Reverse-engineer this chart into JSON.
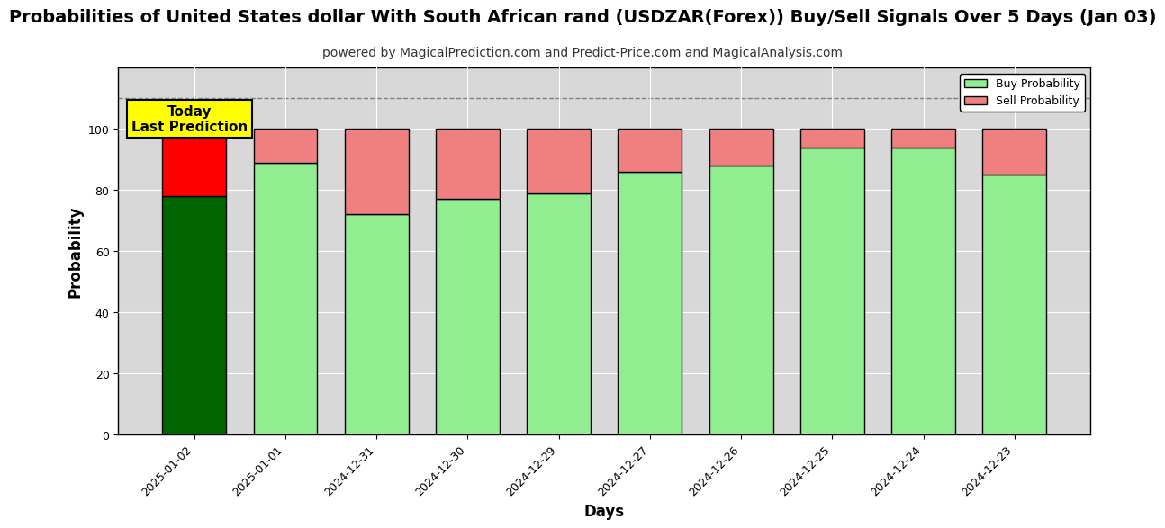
{
  "title": "Probabilities of United States dollar With South African rand (USDZAR(Forex)) Buy/Sell Signals Over 5 Days (Jan 03)",
  "subtitle": "powered by MagicalPrediction.com and Predict-Price.com and MagicalAnalysis.com",
  "xlabel": "Days",
  "ylabel": "Probability",
  "categories": [
    "2025-01-02",
    "2025-01-01",
    "2024-12-31",
    "2024-12-30",
    "2024-12-29",
    "2024-12-27",
    "2024-12-26",
    "2024-12-25",
    "2024-12-24",
    "2024-12-23"
  ],
  "buy_values": [
    78,
    89,
    72,
    77,
    79,
    86,
    88,
    94,
    94,
    85
  ],
  "sell_values": [
    22,
    11,
    28,
    23,
    21,
    14,
    12,
    6,
    6,
    15
  ],
  "buy_color_first": "#006400",
  "sell_color_first": "#FF0000",
  "buy_color_rest": "#90EE90",
  "sell_color_rest": "#F08080",
  "bar_edgecolor": "#000000",
  "ylim": [
    0,
    120
  ],
  "yticks": [
    0,
    20,
    40,
    60,
    80,
    100
  ],
  "dashed_line_y": 110,
  "annotation_text": "Today\nLast Prediction",
  "annotation_bg": "#FFFF00",
  "legend_buy_label": "Buy Probability",
  "legend_sell_label": "Sell Probability",
  "grid_color": "#FFFFFF",
  "bg_color": "#D8D8D8",
  "title_fontsize": 14,
  "subtitle_fontsize": 10,
  "axis_label_fontsize": 12,
  "tick_fontsize": 9
}
